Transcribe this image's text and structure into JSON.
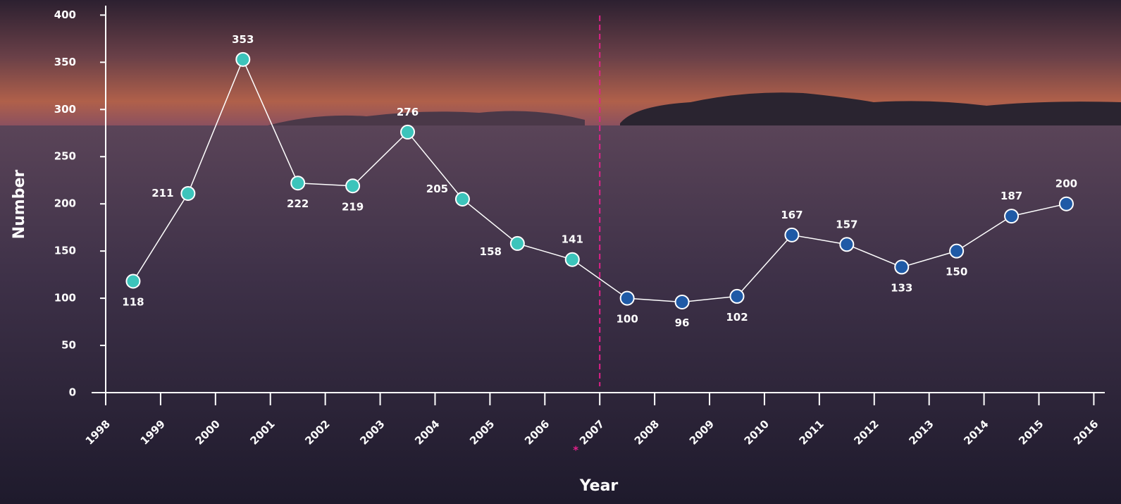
{
  "chart_data": {
    "type": "line",
    "x_label": "Year",
    "y_label": "Number",
    "x": [
      1998.5,
      1999.5,
      2000.5,
      2001.5,
      2002.5,
      2003.5,
      2004.5,
      2005.5,
      2006.5,
      2007.5,
      2008.5,
      2009.5,
      2010.5,
      2011.5,
      2012.5,
      2013.5,
      2014.5,
      2015.5
    ],
    "values": [
      118,
      211,
      353,
      222,
      219,
      276,
      205,
      158,
      141,
      100,
      96,
      102,
      167,
      157,
      133,
      150,
      187,
      200
    ],
    "line_color": "#ffffff",
    "color_before": "#3cc4bb",
    "color_after": "#1f5aa6",
    "marker_line": {
      "x": 2007,
      "label": "*",
      "color": "#e0218a"
    },
    "xlim": [
      1998,
      2016.2
    ],
    "ylim": [
      0,
      410
    ],
    "xticks": [
      1998,
      1999,
      2000,
      2001,
      2002,
      2003,
      2004,
      2005,
      2006,
      2007,
      2008,
      2009,
      2010,
      2011,
      2012,
      2013,
      2014,
      2015,
      2016
    ],
    "yticks": [
      0,
      50,
      100,
      150,
      200,
      250,
      300,
      350,
      400
    ]
  }
}
